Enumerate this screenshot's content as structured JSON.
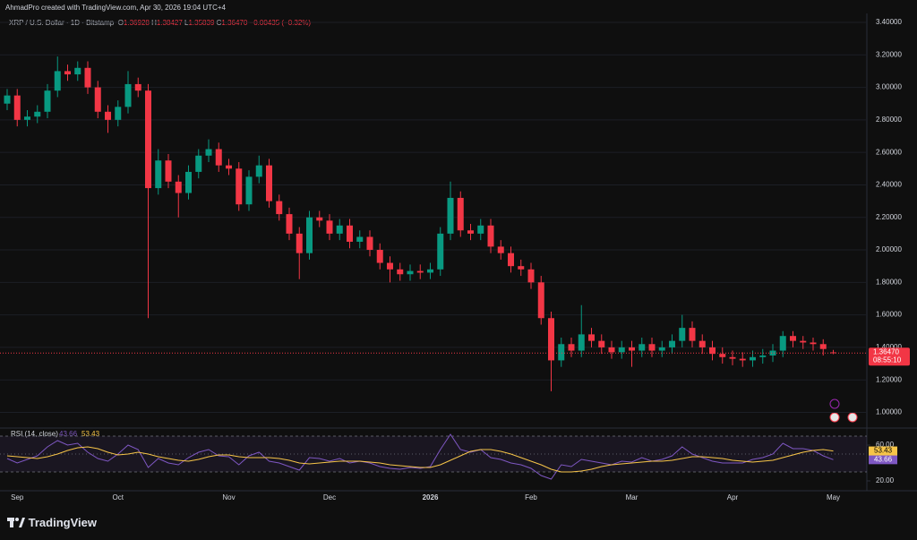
{
  "header": {
    "caption": "AhmadPro created with TradingView.com, Apr 30, 2026 19:04 UTC+4",
    "symbol": "XRP / U.S. Dollar · 1D · Bitstamp",
    "ohlc": [
      {
        "key": "O",
        "text": "1.36928"
      },
      {
        "key": "H",
        "text": "1.38427"
      },
      {
        "key": "L",
        "text": "1.35839"
      },
      {
        "key": "C",
        "text": "1.36470"
      }
    ],
    "change": "−0.00435 (−0.32%)"
  },
  "price_box": {
    "price": "1.36470",
    "countdown": "08:55:10"
  },
  "footer": {
    "brand": "TradingView"
  },
  "chart_data": [
    {
      "type": "candlestick",
      "up_color": "#089981",
      "down_color": "#f23645",
      "grid": true,
      "ylim": [
        0.92,
        3.455
      ],
      "yticks": [
        {
          "value": 1.0,
          "label": "1.00000"
        },
        {
          "value": 1.2,
          "label": "1.20000"
        },
        {
          "value": 1.4,
          "label": "1.40000"
        },
        {
          "value": 1.6,
          "label": "1.60000"
        },
        {
          "value": 1.8,
          "label": "1.80000"
        },
        {
          "value": 2.0,
          "label": "2.00000"
        },
        {
          "value": 2.2,
          "label": "2.20000"
        },
        {
          "value": 2.4,
          "label": "2.40000"
        },
        {
          "value": 2.6,
          "label": "2.60000"
        },
        {
          "value": 2.8,
          "label": "2.80000"
        },
        {
          "value": 3.0,
          "label": "3.00000"
        },
        {
          "value": 3.2,
          "label": "3.20000"
        },
        {
          "value": 3.4,
          "label": "3.40000"
        }
      ],
      "open": [
        2.9,
        2.95,
        2.8,
        2.82,
        2.85,
        2.98,
        3.1,
        3.08,
        3.12,
        3.0,
        2.85,
        2.8,
        2.88,
        3.02,
        2.98,
        2.38,
        2.55,
        2.42,
        2.35,
        2.48,
        2.58,
        2.62,
        2.52,
        2.5,
        2.28,
        2.45,
        2.52,
        2.3,
        2.22,
        2.1,
        1.98,
        2.2,
        2.18,
        2.1,
        2.15,
        2.05,
        2.08,
        2.0,
        1.92,
        1.88,
        1.85,
        1.87,
        1.86,
        1.88,
        2.1,
        2.32,
        2.12,
        2.1,
        2.15,
        2.02,
        1.98,
        1.9,
        1.88,
        1.8,
        1.58,
        1.32,
        1.42,
        1.38,
        1.48,
        1.44,
        1.4,
        1.37,
        1.4,
        1.38,
        1.42,
        1.38,
        1.4,
        1.44,
        1.52,
        1.44,
        1.4,
        1.36,
        1.34,
        1.33,
        1.32,
        1.34,
        1.35,
        1.38,
        1.47,
        1.44,
        1.43,
        1.42,
        1.36928
      ],
      "high": [
        2.99,
        2.99,
        2.86,
        2.89,
        3.02,
        3.19,
        3.14,
        3.16,
        3.16,
        3.04,
        2.89,
        2.92,
        3.1,
        3.06,
        3.02,
        2.62,
        2.59,
        2.46,
        2.52,
        2.62,
        2.68,
        2.66,
        2.56,
        2.54,
        2.49,
        2.58,
        2.56,
        2.34,
        2.26,
        2.14,
        2.24,
        2.24,
        2.22,
        2.19,
        2.19,
        2.12,
        2.12,
        2.04,
        1.96,
        1.92,
        1.91,
        1.91,
        1.92,
        2.14,
        2.42,
        2.36,
        2.16,
        2.19,
        2.19,
        2.06,
        2.02,
        1.94,
        1.92,
        1.84,
        1.62,
        1.46,
        1.46,
        1.66,
        1.52,
        1.48,
        1.44,
        1.44,
        1.44,
        1.46,
        1.46,
        1.44,
        1.48,
        1.6,
        1.56,
        1.48,
        1.44,
        1.4,
        1.38,
        1.37,
        1.38,
        1.39,
        1.42,
        1.5,
        1.5,
        1.47,
        1.46,
        1.45,
        1.38427
      ],
      "low": [
        2.86,
        2.76,
        2.76,
        2.78,
        2.81,
        2.94,
        3.04,
        3.04,
        2.96,
        2.81,
        2.72,
        2.76,
        2.84,
        2.94,
        1.58,
        2.34,
        2.38,
        2.2,
        2.31,
        2.44,
        2.54,
        2.48,
        2.46,
        2.24,
        2.24,
        2.41,
        2.26,
        2.18,
        2.06,
        1.82,
        1.94,
        2.14,
        2.06,
        2.06,
        2.01,
        2.01,
        1.96,
        1.88,
        1.8,
        1.81,
        1.81,
        1.82,
        1.82,
        1.84,
        2.06,
        2.08,
        2.06,
        2.06,
        1.98,
        1.94,
        1.86,
        1.84,
        1.76,
        1.54,
        1.13,
        1.28,
        1.34,
        1.34,
        1.4,
        1.36,
        1.33,
        1.33,
        1.28,
        1.34,
        1.34,
        1.34,
        1.36,
        1.4,
        1.4,
        1.36,
        1.32,
        1.3,
        1.29,
        1.28,
        1.28,
        1.3,
        1.31,
        1.34,
        1.4,
        1.39,
        1.38,
        1.35,
        1.35839
      ],
      "close": [
        2.95,
        2.8,
        2.82,
        2.85,
        2.98,
        3.1,
        3.08,
        3.12,
        3.0,
        2.85,
        2.8,
        2.88,
        3.02,
        2.98,
        2.38,
        2.55,
        2.42,
        2.35,
        2.48,
        2.58,
        2.62,
        2.52,
        2.5,
        2.28,
        2.45,
        2.52,
        2.3,
        2.22,
        2.1,
        1.98,
        2.2,
        2.18,
        2.1,
        2.15,
        2.05,
        2.08,
        2.0,
        1.92,
        1.88,
        1.85,
        1.87,
        1.86,
        1.88,
        2.1,
        2.32,
        2.12,
        2.1,
        2.15,
        2.02,
        1.98,
        1.9,
        1.88,
        1.8,
        1.58,
        1.32,
        1.42,
        1.38,
        1.48,
        1.44,
        1.4,
        1.37,
        1.4,
        1.38,
        1.42,
        1.38,
        1.4,
        1.44,
        1.52,
        1.44,
        1.4,
        1.36,
        1.34,
        1.33,
        1.32,
        1.34,
        1.35,
        1.38,
        1.47,
        1.44,
        1.43,
        1.42,
        1.39,
        1.3647
      ]
    },
    {
      "type": "line",
      "title": "RSI (14, close)",
      "ylim": [
        12,
        77
      ],
      "bands": [
        30,
        50,
        70
      ],
      "band_color": "#7e57c2",
      "yticks": [
        {
          "value": 20,
          "label": "20.00"
        },
        {
          "value": 60,
          "label": "60.00"
        }
      ],
      "categories": [
        null,
        "Sep",
        null,
        null,
        null,
        null,
        null,
        null,
        null,
        null,
        null,
        "Oct",
        null,
        null,
        null,
        null,
        null,
        null,
        null,
        null,
        null,
        null,
        "Nov",
        null,
        null,
        null,
        null,
        null,
        null,
        null,
        null,
        null,
        "Dec",
        null,
        null,
        null,
        null,
        null,
        null,
        null,
        null,
        null,
        "2026",
        null,
        null,
        null,
        null,
        null,
        null,
        null,
        null,
        null,
        "Feb",
        null,
        null,
        null,
        null,
        null,
        null,
        null,
        null,
        null,
        "Mar",
        null,
        null,
        null,
        null,
        null,
        null,
        null,
        null,
        null,
        "Apr",
        null,
        null,
        null,
        null,
        null,
        null,
        null,
        null,
        null,
        "May"
      ],
      "series": [
        {
          "color": "#7e57c2",
          "values": [
            45,
            40,
            44,
            48,
            58,
            65,
            60,
            62,
            52,
            45,
            42,
            50,
            60,
            55,
            35,
            45,
            40,
            38,
            46,
            52,
            55,
            48,
            47,
            38,
            48,
            52,
            42,
            40,
            36,
            32,
            46,
            45,
            42,
            45,
            40,
            42,
            40,
            36,
            34,
            33,
            35,
            34,
            36,
            55,
            72,
            55,
            52,
            55,
            46,
            44,
            40,
            38,
            34,
            26,
            22,
            38,
            36,
            44,
            42,
            40,
            38,
            42,
            41,
            46,
            42,
            44,
            48,
            58,
            50,
            46,
            42,
            40,
            40,
            40,
            44,
            46,
            50,
            62,
            56,
            56,
            54,
            48,
            43.66
          ]
        },
        {
          "color": "#f7c548",
          "values": [
            48,
            47,
            46,
            45,
            47,
            50,
            54,
            57,
            58,
            56,
            52,
            49,
            50,
            52,
            50,
            47,
            45,
            43,
            42,
            44,
            47,
            49,
            49,
            47,
            46,
            46,
            46,
            45,
            43,
            40,
            39,
            40,
            41,
            42,
            42,
            42,
            41,
            40,
            38,
            37,
            36,
            35,
            35,
            38,
            43,
            48,
            53,
            55,
            55,
            53,
            50,
            46,
            42,
            38,
            33,
            30,
            30,
            31,
            33,
            36,
            38,
            39,
            40,
            41,
            42,
            42,
            43,
            45,
            47,
            47,
            46,
            45,
            43,
            42,
            41,
            42,
            43,
            46,
            49,
            52,
            54,
            55,
            53.43
          ]
        }
      ]
    }
  ]
}
